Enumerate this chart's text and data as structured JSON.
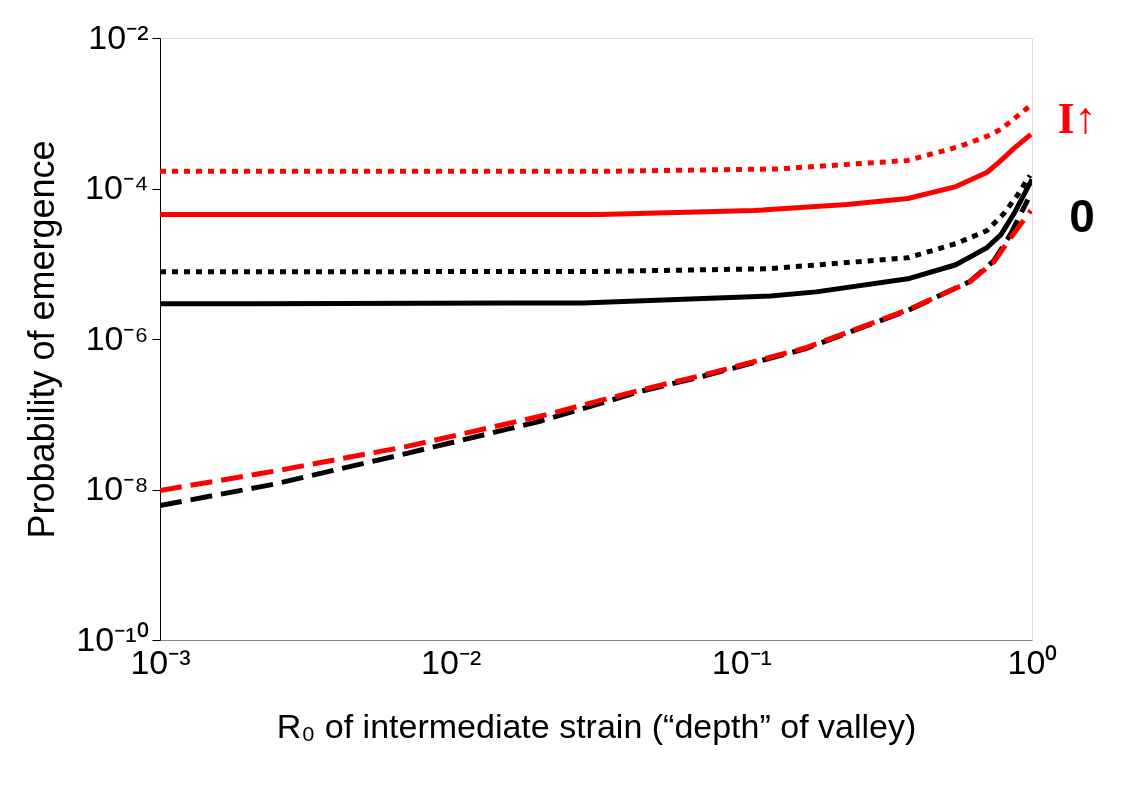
{
  "chart_data": {
    "type": "line",
    "xlabel": "R₀ of intermediate strain (“depth” of valley)",
    "ylabel": "Probability of emergence",
    "log": "xy",
    "grid": false,
    "xlim": [
      0.001,
      1
    ],
    "ylim": [
      1e-10,
      0.01
    ],
    "xticks": [
      {
        "value": 0.001,
        "label": "10⁻³"
      },
      {
        "value": 0.01,
        "label": "10⁻²"
      },
      {
        "value": 0.1,
        "label": "10⁻¹"
      },
      {
        "value": 1,
        "label": "10⁰"
      }
    ],
    "yticks": [
      {
        "value": 1e-10,
        "label": "10⁻¹⁰"
      },
      {
        "value": 1e-08,
        "label": "10⁻⁸"
      },
      {
        "value": 1e-06,
        "label": "10⁻⁶"
      },
      {
        "value": 0.0001,
        "label": "10⁻⁴"
      },
      {
        "value": 0.01,
        "label": "10⁻²"
      }
    ],
    "series": [
      {
        "color": "#ff0000",
        "line_style": "dotted",
        "x": [
          0.001,
          0.0327,
          0.1337,
          0.374,
          0.565,
          0.699,
          0.782,
          0.991
        ],
        "values": [
          0.000169,
          0.000169,
          0.000182,
          0.000236,
          0.000363,
          0.000493,
          0.000612,
          0.00128
        ]
      },
      {
        "color": "#ff0000",
        "line_style": "solid",
        "x": [
          0.001,
          0.0327,
          0.11,
          0.231,
          0.374,
          0.547,
          0.699,
          0.769,
          0.867,
          0.991
        ],
        "values": [
          4.5e-05,
          4.5e-05,
          5.09e-05,
          6.12e-05,
          7.36e-05,
          0.000106,
          0.000163,
          0.000222,
          0.000341,
          0.000525
        ]
      },
      {
        "color": "#000000",
        "line_style": "dotted",
        "x": [
          0.001,
          0.0327,
          0.1235,
          0.374,
          0.547,
          0.699,
          0.8,
          0.894,
          0.984
        ],
        "values": [
          7.8e-06,
          7.9e-06,
          8.58e-06,
          1.2e-05,
          1.85e-05,
          2.75e-05,
          4.64e-05,
          8.3e-05,
          0.000149
        ]
      },
      {
        "color": "#000000",
        "line_style": "solid",
        "x": [
          0.001,
          0.0285,
          0.126,
          0.181,
          0.374,
          0.547,
          0.699,
          0.782,
          0.867,
          1.0
        ],
        "values": [
          2.93e-06,
          3.02e-06,
          3.74e-06,
          4.23e-06,
          6.31e-06,
          9.7e-06,
          1.63e-05,
          2.44e-05,
          4.64e-05,
          0.000132
        ]
      },
      {
        "color": "#000000",
        "line_style": "dashed",
        "x": [
          0.001,
          0.00245,
          0.00708,
          0.0203,
          0.0448,
          0.0738,
          0.1656,
          0.374,
          0.611,
          0.74,
          0.845,
          0.968
        ],
        "values": [
          6.12e-09,
          1.17e-08,
          3.02e-08,
          8.07e-08,
          2e-07,
          3.2e-07,
          7.4e-07,
          2.4e-06,
          5.8e-06,
          1.1e-05,
          2.5e-05,
          7.13e-05
        ]
      },
      {
        "color": "#ff0000",
        "line_style": "dashed",
        "x": [
          0.001,
          0.00245,
          0.00708,
          0.0203,
          0.0448,
          0.0738,
          0.1656,
          0.374,
          0.611,
          0.74,
          0.845,
          0.991
        ],
        "values": [
          9.7e-09,
          1.74e-08,
          3.74e-08,
          9.4e-08,
          2.09e-07,
          3.31e-07,
          7.59e-07,
          2.44e-06,
          5.75e-06,
          1.06e-05,
          2.22e-05,
          5.09e-05
        ]
      }
    ],
    "annotations": [
      "I↑",
      "0"
    ]
  }
}
